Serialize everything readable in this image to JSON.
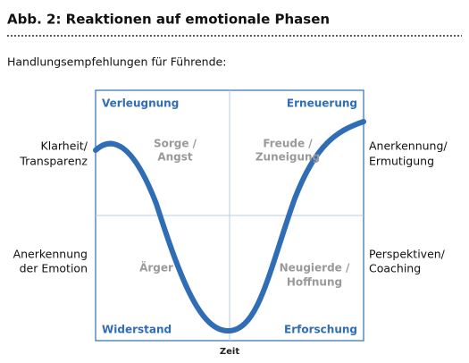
{
  "header": {
    "title": "Abb. 2: Reaktionen auf emotionale Phasen",
    "intro": "Handlungsempfehlungen für Führende:"
  },
  "quadrants": {
    "top_left": {
      "phase": "Verleugnung",
      "feeling": [
        "Sorge /",
        "Angst"
      ]
    },
    "top_right": {
      "phase": "Erneuerung",
      "feeling": [
        "Freude /",
        "Zuneigung"
      ]
    },
    "bottom_left": {
      "phase": "Widerstand",
      "feeling": [
        "Ärger"
      ]
    },
    "bottom_right": {
      "phase": "Erforschung",
      "feeling": [
        "Neugierde /",
        "Hoffnung"
      ]
    }
  },
  "left_labels": [
    [
      "Klarheit/",
      "Transparenz"
    ],
    [
      "Anerkennung",
      "der Emotion"
    ]
  ],
  "right_labels": [
    [
      "Anerkennung/",
      "Ermutigung"
    ],
    [
      "Perspektiven/",
      "Coaching"
    ]
  ],
  "axis_label": "Zeit"
}
